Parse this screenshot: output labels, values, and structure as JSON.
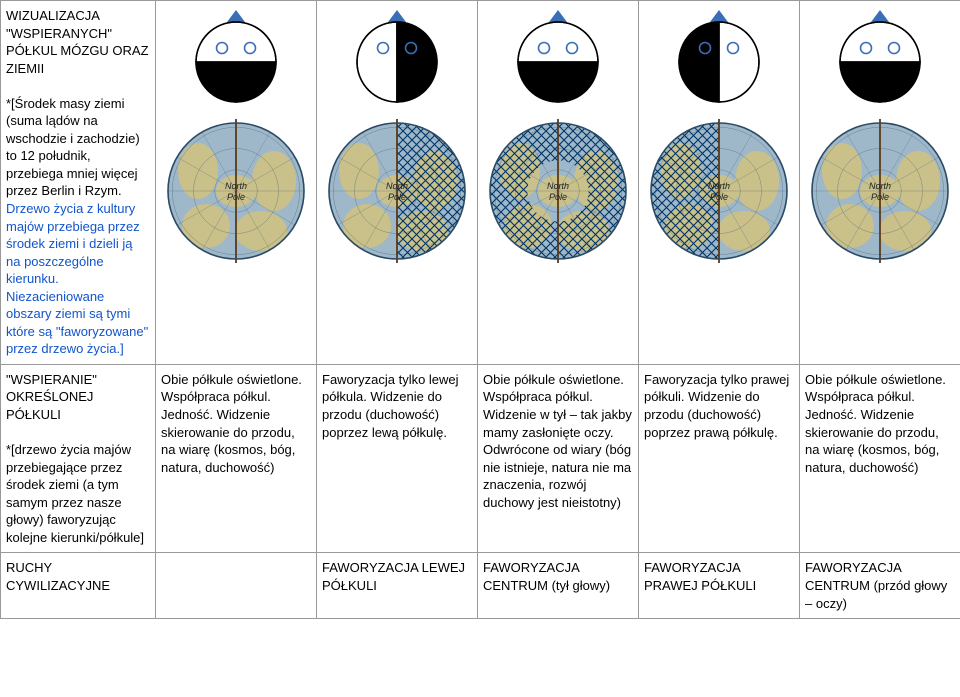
{
  "row1": {
    "header": {
      "title": "WIZUALIZACJA \"WSPIERANYCH\" PÓŁKUL MÓZGU ORAZ ZIEMII",
      "note1": "*[Środek masy ziemi (suma lądów na wschodzie i zachodzie) to 12 południk, przebiega mniej więcej przez Berlin i Rzym.",
      "note2": "Drzewo życia z kultury majów przebiega przez środek ziemi i dzieli ją na poszczególne kierunku.",
      "note3": "Niezacieniowane obszary ziemi są tymi które są \"faworyzowane\" przez drzewo życia.]"
    },
    "brainColors": {
      "lit": "#ffffff",
      "dark": "#000000",
      "outline": "#000000",
      "axis": "#3a6fb7",
      "eye": "#3a6fb7"
    },
    "globeColors": {
      "ocean": "#9fb8c9",
      "land": "#c9c08a",
      "outline": "#2a4a66",
      "hatchStroke": "#003366",
      "poleLabel": "North Pole"
    },
    "cols": [
      {
        "brain": "both",
        "globe": "none"
      },
      {
        "brain": "left",
        "globe": "right"
      },
      {
        "brain": "front",
        "globe": "back"
      },
      {
        "brain": "right",
        "globe": "left"
      },
      {
        "brain": "both",
        "globe": "none"
      }
    ]
  },
  "row2": {
    "header": {
      "title": "\"WSPIERANIE\" OKREŚLONEJ PÓŁKULI",
      "note": "*[drzewo życia majów przebiegające przez środek ziemi (a tym samym przez nasze głowy) faworyzując kolejne kierunki/półkule]"
    },
    "cells": [
      "Obie półkule oświetlone. Współpraca półkul. Jedność. Widzenie  skierowanie do przodu,  na wiarę (kosmos, bóg, natura, duchowość)",
      "Faworyzacja tylko lewej półkula. Widzenie do przodu (duchowość) poprzez lewą półkulę.",
      "Obie półkule oświetlone. Współpraca półkul. Widzenie w tył – tak jakby mamy zasłonięte oczy. Odwrócone od  wiary (bóg nie istnieje, natura nie ma znaczenia, rozwój duchowy jest nieistotny)",
      "Faworyzacja tylko prawej półkuli. Widzenie do przodu (duchowość) poprzez prawą półkulę.",
      "Obie półkule oświetlone. Współpraca półkul. Jedność. Widzenie  skierowanie do przodu,  na wiarę (kosmos, bóg, natura, duchowość)"
    ]
  },
  "row3": {
    "header": "RUCHY CYWILIZACYJNE",
    "cells": [
      "",
      "FAWORYZACJA LEWEJ PÓŁKULI",
      "FAWORYZACJA CENTRUM (tył głowy)",
      "FAWORYZACJA PRAWEJ PÓŁKULI",
      "FAWORYZACJA CENTRUM (przód głowy – oczy)"
    ]
  }
}
